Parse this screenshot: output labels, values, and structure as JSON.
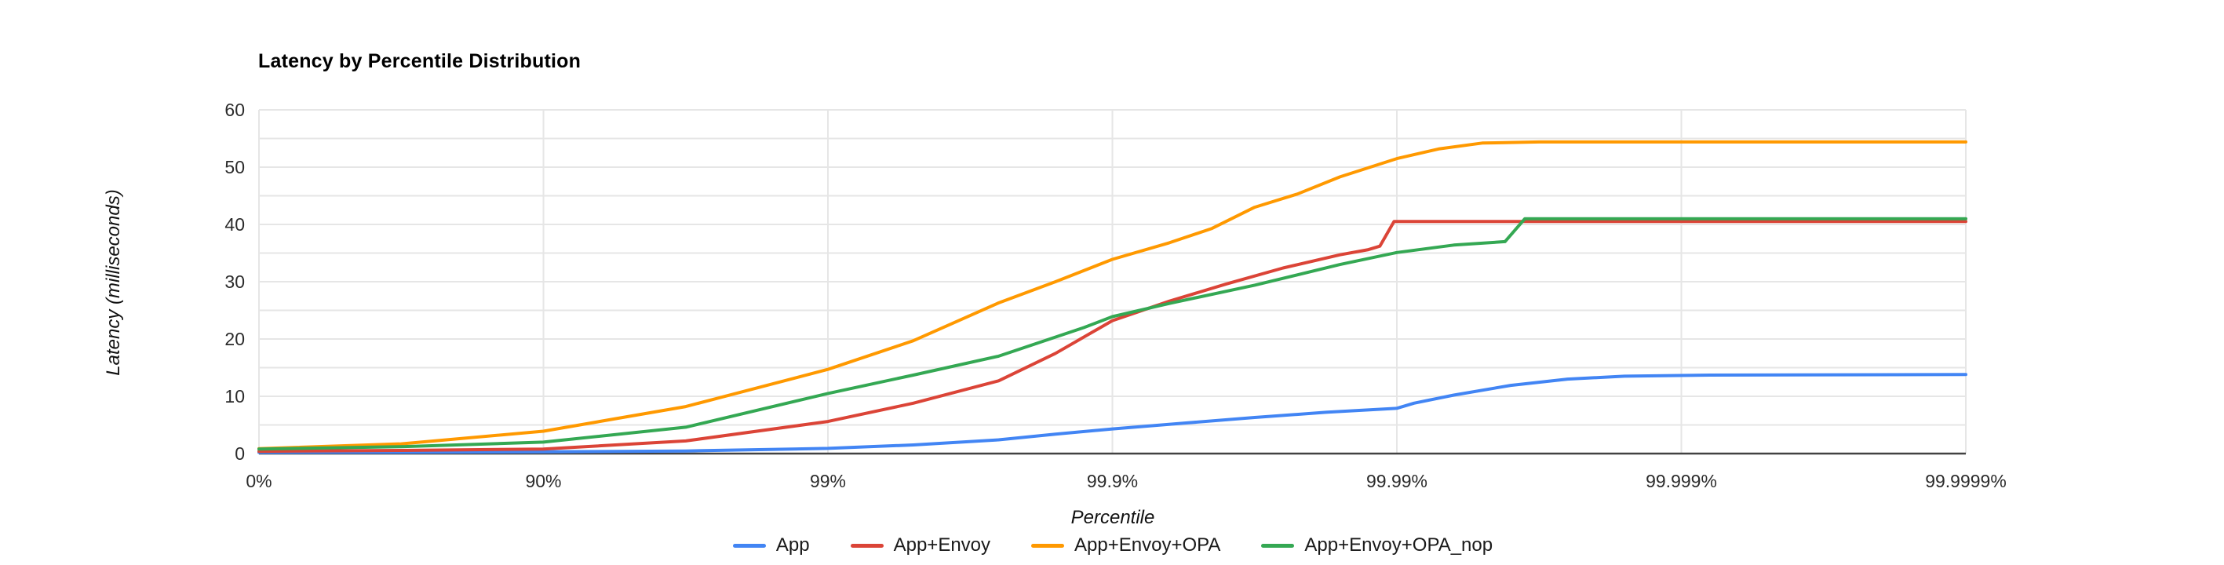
{
  "title": "Latency by Percentile Distribution",
  "axes": {
    "y_title": "Latency (milliseconds)",
    "x_title": "Percentile",
    "y_ticks": [
      0,
      10,
      20,
      30,
      40,
      50,
      60
    ],
    "x_ticks": [
      "0%",
      "90%",
      "99%",
      "99.9%",
      "99.99%",
      "99.999%",
      "99.9999%"
    ],
    "x_tick_nines": [
      0,
      1,
      2,
      3,
      4,
      5,
      6
    ]
  },
  "colors": {
    "app": "#4285F4",
    "app_envoy": "#DB4437",
    "app_envoy_opa": "#FF9900",
    "app_envoy_opa_nop": "#34A853",
    "gridline": "#e6e6e6",
    "axis_line": "#424242",
    "text": "#2b2b2b"
  },
  "legend": [
    {
      "label": "App",
      "color": "#4285F4"
    },
    {
      "label": "App+Envoy",
      "color": "#DB4437"
    },
    {
      "label": "App+Envoy+OPA",
      "color": "#FF9900"
    },
    {
      "label": "App+Envoy+OPA_nop",
      "color": "#34A853"
    }
  ],
  "chart_data": {
    "type": "line",
    "title": "Latency by Percentile Distribution",
    "xlabel": "Percentile",
    "ylabel": "Latency (milliseconds)",
    "ylim": [
      0,
      60
    ],
    "y_gridline_step": 5,
    "x_scale": "log-percentile (units = number of nines, 0% to 99.9999%)",
    "x_tick_labels": [
      "0%",
      "90%",
      "99%",
      "99.9%",
      "99.99%",
      "99.999%",
      "99.9999%"
    ],
    "x_tick_nines": [
      0,
      1,
      2,
      3,
      4,
      5,
      6
    ],
    "grid": true,
    "legend_position": "bottom",
    "series": [
      {
        "name": "App",
        "color": "#4285F4",
        "points_nines_ms": [
          [
            0,
            0.2
          ],
          [
            0.5,
            0.25
          ],
          [
            1,
            0.3
          ],
          [
            1.5,
            0.45
          ],
          [
            2,
            0.9
          ],
          [
            2.3,
            1.5
          ],
          [
            2.6,
            2.4
          ],
          [
            2.8,
            3.4
          ],
          [
            3,
            4.3
          ],
          [
            3.25,
            5.3
          ],
          [
            3.5,
            6.3
          ],
          [
            3.75,
            7.2
          ],
          [
            4,
            7.9
          ],
          [
            4.06,
            8.8
          ],
          [
            4.2,
            10.2
          ],
          [
            4.4,
            11.9
          ],
          [
            4.6,
            13.0
          ],
          [
            4.8,
            13.5
          ],
          [
            5.1,
            13.7
          ],
          [
            6,
            13.8
          ]
        ]
      },
      {
        "name": "App+Envoy",
        "color": "#DB4437",
        "points_nines_ms": [
          [
            0,
            0.4
          ],
          [
            0.5,
            0.55
          ],
          [
            1,
            0.8
          ],
          [
            1.5,
            2.2
          ],
          [
            2,
            5.6
          ],
          [
            2.3,
            8.8
          ],
          [
            2.6,
            12.7
          ],
          [
            2.8,
            17.5
          ],
          [
            3,
            23.2
          ],
          [
            3.2,
            26.6
          ],
          [
            3.4,
            29.6
          ],
          [
            3.6,
            32.4
          ],
          [
            3.8,
            34.7
          ],
          [
            3.9,
            35.6
          ],
          [
            3.94,
            36.2
          ],
          [
            3.99,
            40.5
          ],
          [
            4.6,
            40.5
          ],
          [
            6,
            40.5
          ]
        ]
      },
      {
        "name": "App+Envoy+OPA",
        "color": "#FF9900",
        "points_nines_ms": [
          [
            0,
            0.85
          ],
          [
            0.5,
            1.7
          ],
          [
            1,
            3.9
          ],
          [
            1.5,
            8.2
          ],
          [
            2,
            14.7
          ],
          [
            2.3,
            19.7
          ],
          [
            2.6,
            26.3
          ],
          [
            2.8,
            30.0
          ],
          [
            3,
            33.9
          ],
          [
            3.2,
            36.8
          ],
          [
            3.35,
            39.3
          ],
          [
            3.5,
            43.0
          ],
          [
            3.65,
            45.3
          ],
          [
            3.8,
            48.3
          ],
          [
            4,
            51.5
          ],
          [
            4.15,
            53.2
          ],
          [
            4.3,
            54.2
          ],
          [
            4.5,
            54.4
          ],
          [
            6,
            54.4
          ]
        ]
      },
      {
        "name": "App+Envoy+OPA_nop",
        "color": "#34A853",
        "points_nines_ms": [
          [
            0,
            0.8
          ],
          [
            0.5,
            1.2
          ],
          [
            1,
            2.0
          ],
          [
            1.5,
            4.6
          ],
          [
            2,
            10.5
          ],
          [
            2.3,
            13.7
          ],
          [
            2.6,
            17.0
          ],
          [
            2.9,
            22.0
          ],
          [
            3,
            23.9
          ],
          [
            3.2,
            26.2
          ],
          [
            3.5,
            29.4
          ],
          [
            3.8,
            33.0
          ],
          [
            4,
            35.1
          ],
          [
            4.2,
            36.4
          ],
          [
            4.38,
            37.0
          ],
          [
            4.45,
            41.0
          ],
          [
            6,
            41.0
          ]
        ]
      }
    ]
  }
}
